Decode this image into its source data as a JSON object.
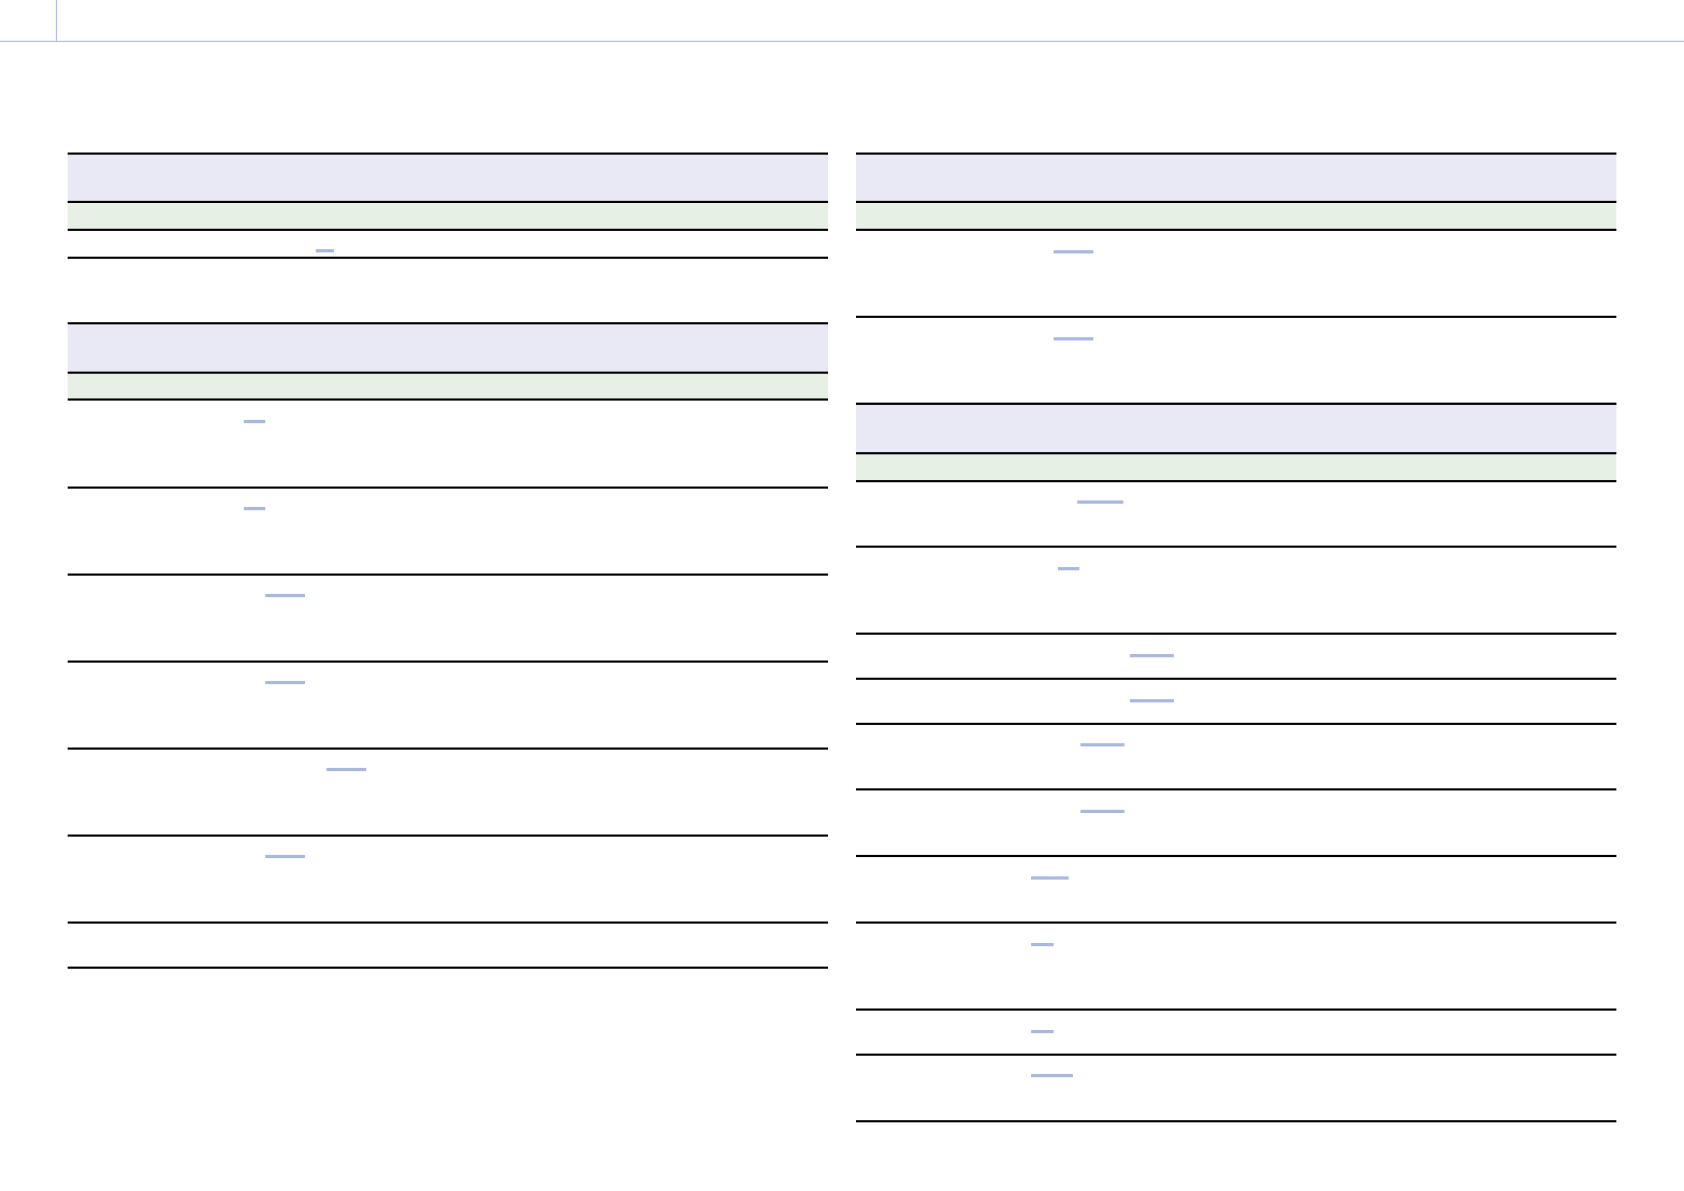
{
  "colors": {
    "header_rule": "#a9b9dd",
    "title_band": "#e9e8f5",
    "subheader_band": "#e6f0e5",
    "row_rule": "#000000",
    "link": "#a9b9dd"
  }
}
